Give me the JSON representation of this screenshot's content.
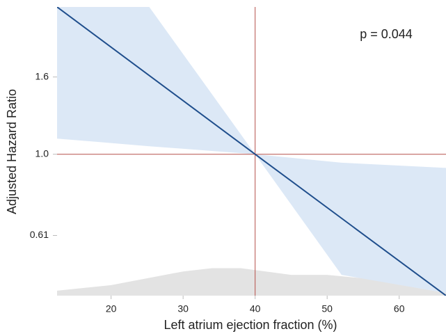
{
  "chart_data": {
    "type": "line",
    "xlabel": "Left atrium ejection fraction (%)",
    "ylabel": "Adjusted Hazard Ratio",
    "annotation": "p = 0.044",
    "log_y": true,
    "xlim": [
      12.5,
      66.5
    ],
    "ylim": [
      0.423,
      2.45
    ],
    "xticks": [
      20,
      30,
      40,
      50,
      60
    ],
    "yticks": [
      {
        "value": 0.61,
        "label": "0.61"
      },
      {
        "value": 1,
        "label": "1.0"
      },
      {
        "value": 1.6,
        "label": "1.6"
      }
    ],
    "reference_x": 40,
    "reference_y": 1,
    "reference_color": "#b5504a",
    "density": {
      "color": "#e3e3e3",
      "x": [
        12.5,
        20,
        30,
        34,
        38,
        45,
        50,
        55,
        66.5
      ],
      "values": [
        0.436,
        0.451,
        0.49,
        0.5,
        0.5,
        0.48,
        0.48,
        0.47,
        0.43
      ]
    },
    "band": {
      "color": "#dce8f6",
      "x": [
        12.5,
        25.3,
        40,
        52,
        66.5
      ],
      "lower": [
        1.1,
        1.05,
        1.0,
        0.48,
        0.43
      ],
      "upper": [
        3.2,
        2.45,
        1.0,
        0.95,
        0.92
      ]
    },
    "series": [
      {
        "color": "#1f4e8c",
        "x": [
          12.5,
          40,
          66.5
        ],
        "values": [
          2.45,
          1.0,
          0.423
        ]
      }
    ]
  }
}
